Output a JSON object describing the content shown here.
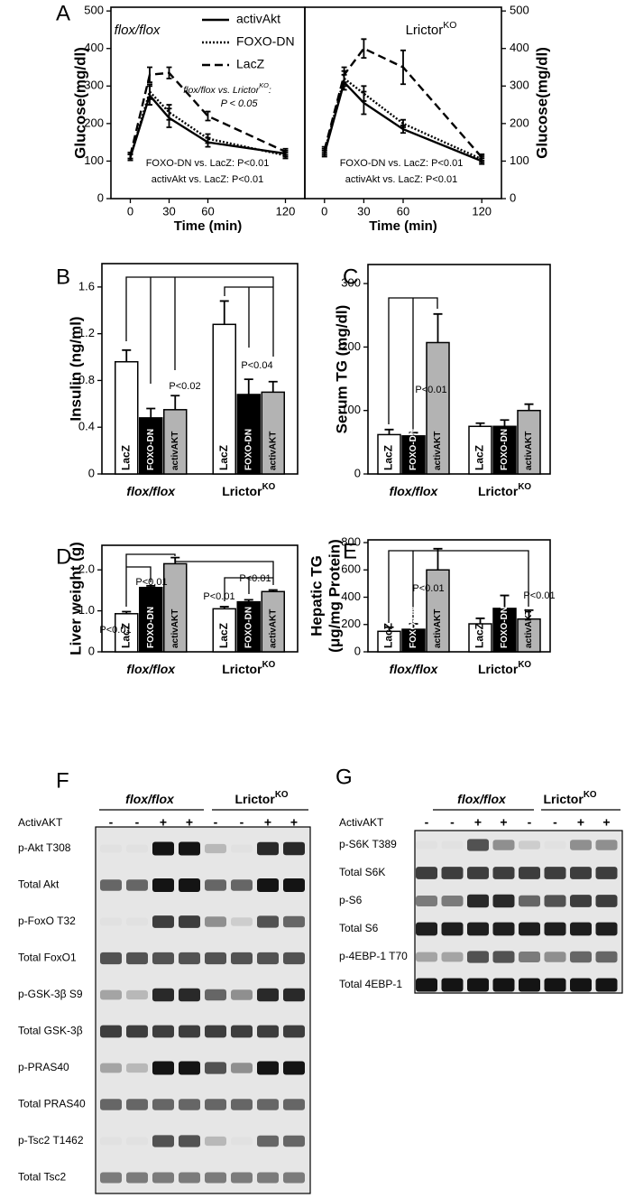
{
  "panel_labels": [
    "A",
    "B",
    "C",
    "D",
    "E",
    "F",
    "G"
  ],
  "chart_data": [
    {
      "type": "line",
      "xlabel": "Time (min)",
      "ylabel": "Glucose(mg/dl)",
      "annotations": [
        {
          "text": "flox/flox"
        },
        {
          "text": "flox/flox vs. Lrictor",
          "sup": "KO",
          "tail": ":"
        },
        {
          "text": "P < 0.05"
        },
        {
          "text": "FOXO-DN vs. LacZ: P<0.01"
        },
        {
          "text": "activAkt vs. LacZ: P<0.01"
        }
      ],
      "x": [
        0,
        15,
        30,
        60,
        120
      ],
      "xlim": [
        -15,
        135
      ],
      "xticks": [
        0,
        30,
        60,
        120
      ],
      "ylim": [
        0,
        510
      ],
      "yticks": [
        0,
        100,
        200,
        300,
        400,
        500
      ],
      "legend": "upper right",
      "series": [
        {
          "name": "activAkt",
          "color": "#000000",
          "dash": "solid",
          "values": [
            110,
            275,
            215,
            150,
            120
          ],
          "errors": [
            8,
            25,
            25,
            12,
            8
          ]
        },
        {
          "name": "FOXO-DN",
          "color": "#000000",
          "dash": "dotted",
          "values": [
            110,
            285,
            230,
            160,
            115
          ],
          "errors": [
            8,
            20,
            20,
            12,
            8
          ]
        },
        {
          "name": "LacZ",
          "color": "#000000",
          "dash": "dashed",
          "values": [
            115,
            330,
            335,
            220,
            125
          ],
          "errors": [
            8,
            20,
            15,
            12,
            8
          ]
        }
      ]
    },
    {
      "type": "line",
      "xlabel": "Time (min)",
      "y2label": "Glucose(mg/dl)",
      "annotations": [
        {
          "text": "Lrictor",
          "sup": "KO"
        },
        {
          "text": "FOXO-DN vs. LacZ: P<0.01"
        },
        {
          "text": "activAkt vs. LacZ: P<0.01"
        }
      ],
      "x": [
        0,
        15,
        30,
        60,
        120
      ],
      "xlim": [
        -15,
        135
      ],
      "xticks": [
        0,
        30,
        60,
        120
      ],
      "y2lim": [
        0,
        510
      ],
      "y2ticks": [
        0,
        100,
        200,
        300,
        400,
        500
      ],
      "series": [
        {
          "name": "activAkt",
          "color": "#000000",
          "dash": "solid",
          "axis": "y2",
          "values": [
            120,
            310,
            255,
            185,
            100
          ],
          "errors": [
            8,
            20,
            30,
            10,
            8
          ]
        },
        {
          "name": "FOXO-DN",
          "color": "#000000",
          "dash": "dotted",
          "axis": "y2",
          "values": [
            125,
            320,
            280,
            200,
            105
          ],
          "errors": [
            8,
            20,
            20,
            10,
            8
          ]
        },
        {
          "name": "LacZ",
          "color": "#000000",
          "dash": "dashed",
          "axis": "y2",
          "values": [
            130,
            330,
            400,
            350,
            110
          ],
          "errors": [
            8,
            20,
            25,
            45,
            8
          ]
        }
      ]
    },
    {
      "type": "bar",
      "ylabel": "Insulin (ng/ml)",
      "categories": [
        {
          "text": "flox/flox"
        },
        {
          "text": "Lrictor",
          "sup": "KO"
        }
      ],
      "ylim": [
        0,
        1.8
      ],
      "yticks": [
        0,
        0.4,
        0.8,
        1.2,
        1.6
      ],
      "annotations": [
        "P<0.02",
        "P<0.04"
      ],
      "series": [
        {
          "name": "LacZ",
          "color": "#ffffff",
          "values": [
            0.96,
            1.28
          ],
          "errors": [
            0.1,
            0.2
          ]
        },
        {
          "name": "FOXO-DN",
          "color": "#000000",
          "values": [
            0.48,
            0.68
          ],
          "errors": [
            0.08,
            0.13
          ]
        },
        {
          "name": "activAKT",
          "color": "#b3b3b3",
          "values": [
            0.55,
            0.7
          ],
          "errors": [
            0.12,
            0.09
          ]
        }
      ]
    },
    {
      "type": "bar",
      "ylabel": "Serum TG (mg/dl)",
      "categories": [
        {
          "text": "flox/flox"
        },
        {
          "text": "Lrictor",
          "sup": "KO"
        }
      ],
      "ylim": [
        0,
        330
      ],
      "yticks": [
        0,
        100,
        200,
        300
      ],
      "annotations": [
        "P<0.01"
      ],
      "series": [
        {
          "name": "LacZ",
          "color": "#ffffff",
          "values": [
            62,
            75
          ],
          "errors": [
            8,
            5
          ]
        },
        {
          "name": "FOXO-DN",
          "color": "#000000",
          "values": [
            60,
            75
          ],
          "errors": [
            5,
            10
          ]
        },
        {
          "name": "activAKT",
          "color": "#b3b3b3",
          "values": [
            207,
            100
          ],
          "errors": [
            45,
            10
          ]
        }
      ]
    },
    {
      "type": "bar",
      "ylabel": "Liver weight (g)",
      "categories": [
        {
          "text": "flox/flox"
        },
        {
          "text": "Lrictor",
          "sup": "KO"
        }
      ],
      "ylim": [
        0,
        2.6
      ],
      "yticks": [
        0,
        {
          "value": 1,
          "label": "1.0"
        },
        {
          "value": 2,
          "label": "2.0"
        }
      ],
      "annotations": [
        "P<0.01",
        "P<0.01",
        "P<0.01",
        "P<0.01"
      ],
      "series": [
        {
          "name": "LacZ",
          "color": "#ffffff",
          "values": [
            0.93,
            1.05
          ],
          "errors": [
            0.05,
            0.05
          ]
        },
        {
          "name": "FOXO-DN",
          "color": "#000000",
          "values": [
            1.57,
            1.22
          ],
          "errors": [
            0.04,
            0.05
          ]
        },
        {
          "name": "activAKT",
          "color": "#b3b3b3",
          "values": [
            2.15,
            1.47
          ],
          "errors": [
            0.15,
            0.04
          ]
        }
      ]
    },
    {
      "type": "bar",
      "ylabel": [
        "Hepatic TG",
        "(μg/mg Protein)"
      ],
      "categories": [
        {
          "text": "flox/flox"
        },
        {
          "text": "Lrictor",
          "sup": "KO"
        }
      ],
      "ylim": [
        0,
        820
      ],
      "yticks": [
        0,
        200,
        400,
        600,
        800
      ],
      "annotations": [
        "P<0.01",
        "P<0.01"
      ],
      "series": [
        {
          "name": "LacZ",
          "color": "#ffffff",
          "values": [
            150,
            205
          ],
          "errors": [
            30,
            40
          ]
        },
        {
          "name": "FOXO-DN",
          "color": "#000000",
          "values": [
            165,
            318
          ],
          "errors": [
            40,
            95
          ]
        },
        {
          "name": "activAKT",
          "color": "#b3b3b3",
          "values": [
            600,
            240
          ],
          "errors": [
            155,
            65
          ]
        }
      ]
    }
  ],
  "blots": [
    {
      "groups": [
        {
          "text": "flox/flox"
        },
        {
          "text": "Lrictor",
          "sup": "KO"
        }
      ],
      "treatment": "ActivAKT",
      "signs": [
        "-",
        "-",
        "+",
        "+",
        "-",
        "-",
        "+",
        "+"
      ],
      "rows": [
        "p-Akt T308",
        "Total Akt",
        "p-FoxO T32",
        "Total FoxO1",
        "p-GSK-3β S9",
        "Total GSK-3β",
        "p-PRAS40",
        "Total PRAS40",
        "p-Tsc2 T1462",
        "Total Tsc2"
      ]
    },
    {
      "groups": [
        {
          "text": "flox/flox"
        },
        {
          "text": "Lrictor",
          "sup": "KO"
        }
      ],
      "treatment": "ActivAKT",
      "signs": [
        "-",
        "-",
        "+",
        "+",
        "-",
        "-",
        "+",
        "+"
      ],
      "rows": [
        "p-S6K T389",
        "Total S6K",
        "p-S6",
        "Total S6",
        "p-4EBP-1 T70",
        "Total 4EBP-1"
      ]
    }
  ]
}
